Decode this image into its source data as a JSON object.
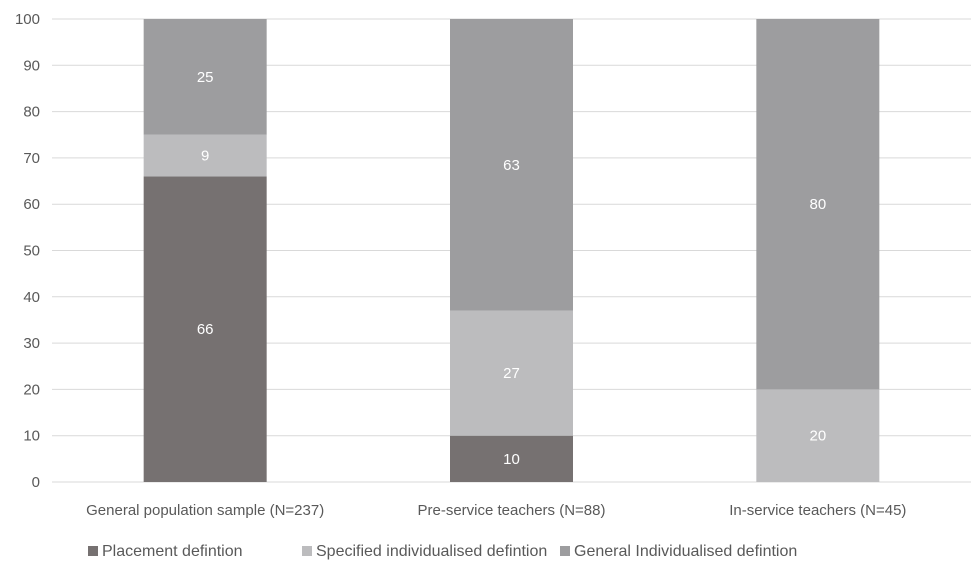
{
  "chart_data": {
    "type": "bar",
    "stacked": true,
    "title": "",
    "xlabel": "",
    "ylabel": "",
    "ylim": [
      0,
      100
    ],
    "yticks": [
      0,
      10,
      20,
      30,
      40,
      50,
      60,
      70,
      80,
      90,
      100
    ],
    "grid": true,
    "legend_position": "bottom",
    "categories": [
      "General population sample (N=237)",
      "Pre-service teachers (N=88)",
      "In-service teachers (N=45)"
    ],
    "series": [
      {
        "name": "Placement defintion",
        "color": "#767171",
        "values": [
          66,
          10,
          0
        ]
      },
      {
        "name": "Specified individualised defintion",
        "color": "#bcbcbe",
        "values": [
          9,
          27,
          20
        ]
      },
      {
        "name": "General Individualised defintion",
        "color": "#9d9d9f",
        "values": [
          25,
          63,
          80
        ]
      }
    ]
  }
}
